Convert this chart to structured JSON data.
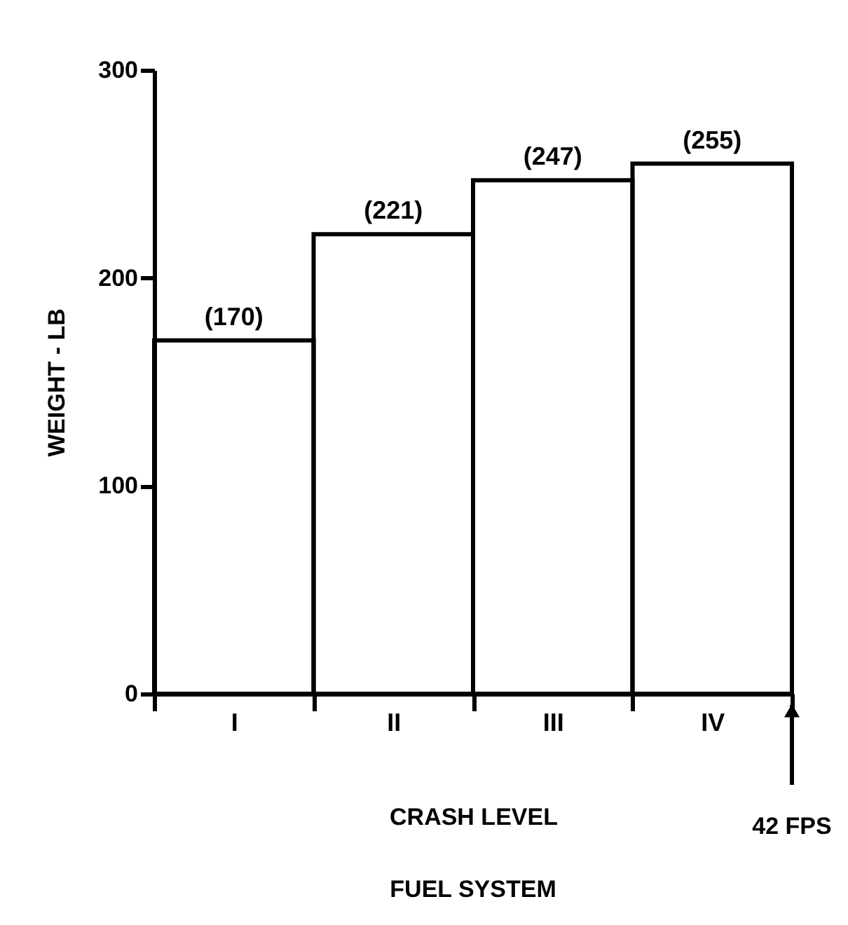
{
  "chart_data": {
    "type": "bar",
    "categories": [
      "I",
      "II",
      "III",
      "IV"
    ],
    "values": [
      170,
      221,
      247,
      255
    ],
    "value_labels": [
      "(170)",
      "(221)",
      "(247)",
      "(255)"
    ],
    "color": "#000000",
    "xlabel": "CRASH LEVEL",
    "ylabel": "WEIGHT - LB",
    "ylim": [
      0,
      300
    ],
    "yticks": [
      0,
      100,
      200,
      300
    ],
    "grid": false,
    "annotations": [
      "42 FPS",
      "FUEL SYSTEM"
    ]
  }
}
